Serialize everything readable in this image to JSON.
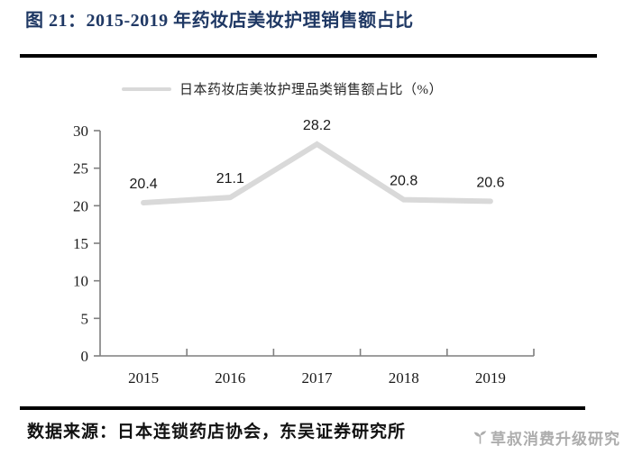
{
  "figure": {
    "title": "图 21：2015-2019 年药妆店美妆护理销售额占比",
    "source": "数据来源：日本连锁药店协会，东吴证券研究所",
    "watermark": "草叔消费升级研究"
  },
  "legend": {
    "label": "日本药妆店美妆护理品类销售额占比（%）"
  },
  "colors": {
    "title": "#1F3864",
    "line": "#D9D9D9",
    "axis": "#7F7F7F",
    "text": "#1A1A1A",
    "rule": "#000000",
    "watermark": "#ADADAD"
  },
  "chart_data": {
    "type": "line",
    "title": "",
    "xlabel": "",
    "ylabel": "",
    "categories": [
      "2015",
      "2016",
      "2017",
      "2018",
      "2019"
    ],
    "series": [
      {
        "name": "日本药妆店美妆护理品类销售额占比（%）",
        "values": [
          20.4,
          21.1,
          28.2,
          20.8,
          20.6
        ]
      }
    ],
    "data_labels": [
      "20.4",
      "21.1",
      "28.2",
      "20.8",
      "20.6"
    ],
    "ylim": [
      0,
      30
    ],
    "ytick_step": 5,
    "ytick_labels": [
      "0",
      "5",
      "10",
      "15",
      "20",
      "25",
      "30"
    ],
    "grid": false,
    "legend_position": "top",
    "line_style": "thick-light-gray, no markers"
  }
}
